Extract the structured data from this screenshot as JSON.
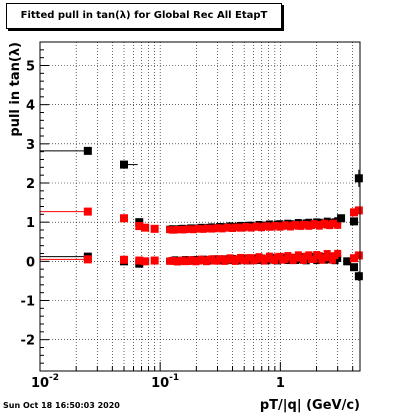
{
  "title": "Fitted pull in tan(λ) for Global Rec All EtapT",
  "timestamp": "Sun Oct 18 16:50:03 2020",
  "chart_data": {
    "type": "scatter",
    "xlabel": "pT/|q| (GeV/c)",
    "ylabel": "pull in tan(λ)",
    "xscale": "log",
    "xlim": [
      0.01,
      4.6
    ],
    "ylim": [
      -2.8,
      5.6
    ],
    "grid": true,
    "x_ticks": [
      {
        "v": 0.01,
        "label": "10"
      },
      {
        "v": 0.1,
        "label": "10"
      },
      {
        "v": 1,
        "label": "1"
      }
    ],
    "x_tick_exps": [
      "-2",
      "-1",
      ""
    ],
    "y_ticks": [
      -2,
      -1,
      0,
      1,
      2,
      3,
      4,
      5
    ],
    "series": [
      {
        "color": "#000000",
        "points": [
          {
            "x": 0.025,
            "y": 2.82,
            "xerr_lo": 0.015,
            "xerr_hi": 0.0
          },
          {
            "x": 0.05,
            "y": 2.47,
            "xerr_lo": 0.0,
            "xerr_hi": 0.015
          },
          {
            "x": 0.067,
            "y": 1.0
          },
          {
            "x": 3.2,
            "y": 1.1
          },
          {
            "x": 4.1,
            "y": 1.02
          },
          {
            "x": 4.5,
            "y": 2.12,
            "yerr": 0.22
          },
          {
            "x": 0.025,
            "y": 0.12,
            "xerr_lo": 0.015,
            "xerr_hi": 0.0
          },
          {
            "x": 0.05,
            "y": 0.0
          },
          {
            "x": 0.067,
            "y": -0.06
          },
          {
            "x": 3.6,
            "y": 0.0
          },
          {
            "x": 4.1,
            "y": -0.15
          },
          {
            "x": 4.5,
            "y": -0.38,
            "yerr": 0.12
          }
        ]
      },
      {
        "color": "#ff0000",
        "points": [
          {
            "x": 0.025,
            "y": 1.27,
            "xerr_lo": 0.015,
            "xerr_hi": 0.0
          },
          {
            "x": 0.05,
            "y": 1.1
          },
          {
            "x": 0.067,
            "y": 0.9
          },
          {
            "x": 0.075,
            "y": 0.86
          },
          {
            "x": 0.09,
            "y": 0.83
          },
          {
            "x": 4.1,
            "y": 1.25
          },
          {
            "x": 4.5,
            "y": 1.3
          },
          {
            "x": 0.025,
            "y": 0.05,
            "xerr_lo": 0.015,
            "xerr_hi": 0.0
          },
          {
            "x": 0.05,
            "y": 0.04
          },
          {
            "x": 0.067,
            "y": 0.02
          },
          {
            "x": 0.075,
            "y": 0.0
          },
          {
            "x": 0.09,
            "y": 0.02
          },
          {
            "x": 4.1,
            "y": 0.08
          },
          {
            "x": 4.5,
            "y": 0.15
          }
        ]
      }
    ],
    "bands": [
      {
        "color": "#000000",
        "x_from": 0.12,
        "x_to": 3.0,
        "y_start": 0.82,
        "y_end": 1.0,
        "wiggle": 0.03
      },
      {
        "color": "#ff0000",
        "x_from": 0.12,
        "x_to": 3.0,
        "y_start": 0.8,
        "y_end": 0.95,
        "wiggle": 0.03
      },
      {
        "color": "#000000",
        "x_from": 0.12,
        "x_to": 3.0,
        "y_start": 0.02,
        "y_end": 0.08,
        "wiggle": 0.05
      },
      {
        "color": "#ff0000",
        "x_from": 0.12,
        "x_to": 3.0,
        "y_start": 0.0,
        "y_end": 0.12,
        "wiggle": 0.07
      }
    ]
  }
}
